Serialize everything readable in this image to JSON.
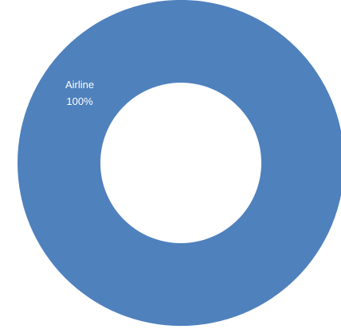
{
  "chart_data": {
    "type": "pie",
    "variant": "doughnut",
    "slices": [
      {
        "category": "Airline",
        "value": 100,
        "percent_label": "100%",
        "color": "#4F81BD"
      }
    ]
  }
}
